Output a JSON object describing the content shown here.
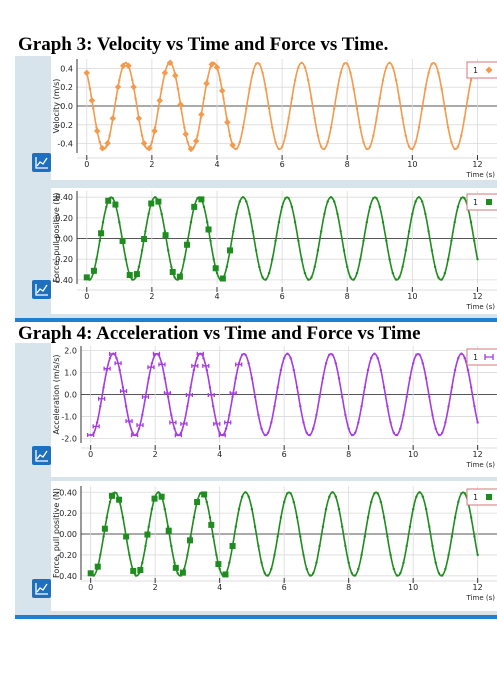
{
  "titles": {
    "graph3": "Graph 3: Velocity vs Time and Force vs Time.",
    "graph4": "Graph 4: Acceleration vs Time and Force vs Time"
  },
  "colors": {
    "velocity": "#f39a4c",
    "force": "#1e8c1e",
    "acceleration": "#a53ce0",
    "grid": "#dadada",
    "panel_bg": "#d8e4ec",
    "icon_bg": "#1f6fbf"
  },
  "icons": [
    "graph-options-icon"
  ],
  "chart_data": [
    {
      "type": "line",
      "ylabel": "Velocity (m/s)",
      "xlabel": "Time (s)",
      "xlim": [
        -0.3,
        12.6
      ],
      "ylim": [
        -0.5,
        0.5
      ],
      "xticks": [
        "0",
        "2",
        "4",
        "6",
        "8",
        "10",
        "12"
      ],
      "yticks": [
        "0.4",
        "0.2",
        "0.0",
        "-0.2",
        "-0.4"
      ],
      "legend": "1",
      "grid": true,
      "series": [
        {
          "name": "1",
          "amplitude": 0.46,
          "period_s": 1.35,
          "peak_time_s": 1.2,
          "t_start": 0.0,
          "t_end": 12.0,
          "marker": "diamond",
          "marker_interval_s": 0.16,
          "marker_until_s": 4.6
        }
      ]
    },
    {
      "type": "line",
      "ylabel": "Force, pull positive (N)",
      "xlabel": "Time (s)",
      "xlim": [
        -0.3,
        12.6
      ],
      "ylim": [
        -0.44,
        0.46
      ],
      "xticks": [
        "0",
        "2",
        "4",
        "6",
        "8",
        "10",
        "12"
      ],
      "yticks": [
        "0.40",
        "0.20",
        "0.00",
        "-0.20",
        "-0.40"
      ],
      "legend": "1",
      "grid": true,
      "series": [
        {
          "name": "1",
          "amplitude": 0.4,
          "period_s": 1.35,
          "peak_time_s": 0.75,
          "t_start": 0.0,
          "t_end": 12.0,
          "marker": "square",
          "marker_interval_s": 0.22,
          "marker_until_s": 4.6
        }
      ]
    },
    {
      "type": "line",
      "ylabel": "Acceleration (m/s/s)",
      "xlabel": "Time (s)",
      "xlim": [
        -0.3,
        12.6
      ],
      "ylim": [
        -2.2,
        2.2
      ],
      "xticks": [
        "0",
        "2",
        "4",
        "6",
        "8",
        "10",
        "12"
      ],
      "yticks": [
        "2.0",
        "1.0",
        "0.0",
        "-1.0",
        "-2.0"
      ],
      "legend": "1",
      "grid": true,
      "series": [
        {
          "name": "1",
          "amplitude": 1.85,
          "period_s": 1.35,
          "peak_time_s": 0.7,
          "t_start": 0.0,
          "t_end": 12.0,
          "marker": "bar",
          "marker_interval_s": 0.17,
          "marker_until_s": 4.6
        }
      ]
    },
    {
      "type": "line",
      "ylabel": "Force, pull positive (N)",
      "xlabel": "Time (s)",
      "xlim": [
        -0.3,
        12.6
      ],
      "ylim": [
        -0.44,
        0.46
      ],
      "xticks": [
        "0",
        "2",
        "4",
        "6",
        "8",
        "10",
        "12"
      ],
      "yticks": [
        "0.40",
        "0.20",
        "0.00",
        "-0.20",
        "-0.40"
      ],
      "legend": "1",
      "grid": true,
      "series": [
        {
          "name": "1",
          "amplitude": 0.4,
          "period_s": 1.35,
          "peak_time_s": 0.75,
          "t_start": 0.0,
          "t_end": 12.0,
          "marker": "square",
          "marker_interval_s": 0.22,
          "marker_until_s": 4.6
        }
      ]
    }
  ]
}
